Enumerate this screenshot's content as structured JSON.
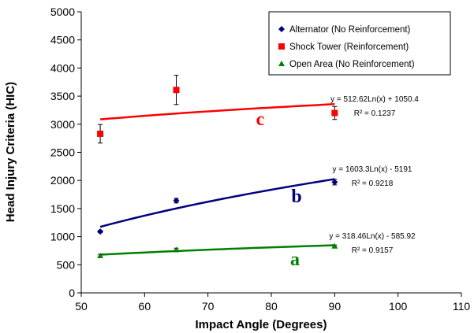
{
  "chart_data": {
    "type": "scatter",
    "xlabel": "Impact Angle (Degrees)",
    "ylabel": "Head Injury Criteria (HIC)",
    "xlim": [
      50,
      110
    ],
    "ylim": [
      0,
      5000
    ],
    "xticks": [
      "50",
      "60",
      "70",
      "80",
      "90",
      "100",
      "110"
    ],
    "yticks": [
      "0",
      "500",
      "1000",
      "1500",
      "2000",
      "2500",
      "3000",
      "3500",
      "4000",
      "4500",
      "5000"
    ],
    "grid": false,
    "legend_position": "top-right",
    "series": [
      {
        "name": "Alternator (No Reinforcement)",
        "marker": "diamond",
        "color": "#000080",
        "x": [
          53,
          65,
          90
        ],
        "y": [
          1090,
          1640,
          1970
        ],
        "yerr": [
          20,
          40,
          50
        ],
        "trend": {
          "a": 1603.3,
          "b": -5191,
          "equation": "y = 1603.3Ln(x) - 5191",
          "r2": "R² = 0.9218"
        },
        "letter": "b"
      },
      {
        "name": "Shock Tower (Reinforcement)",
        "marker": "square",
        "color": "#ff0000",
        "x": [
          53,
          65,
          90
        ],
        "y": [
          2830,
          3610,
          3200
        ],
        "yerr": [
          165,
          260,
          115
        ],
        "trend": {
          "a": 512.62,
          "b": 1050.4,
          "equation": "y = 512.62Ln(x) + 1050.4",
          "r2": "R² = 0.1237"
        },
        "letter": "c"
      },
      {
        "name": "Open Area (No Reinforcement)",
        "marker": "triangle",
        "color": "#008000",
        "x": [
          53,
          65,
          90
        ],
        "y": [
          660,
          765,
          830
        ],
        "yerr": [
          25,
          30,
          20
        ],
        "trend": {
          "a": 318.46,
          "b": -585.92,
          "equation": "y = 318.46Ln(x) - 585.92",
          "r2": "R² = 0.9157"
        },
        "letter": "a"
      }
    ]
  }
}
